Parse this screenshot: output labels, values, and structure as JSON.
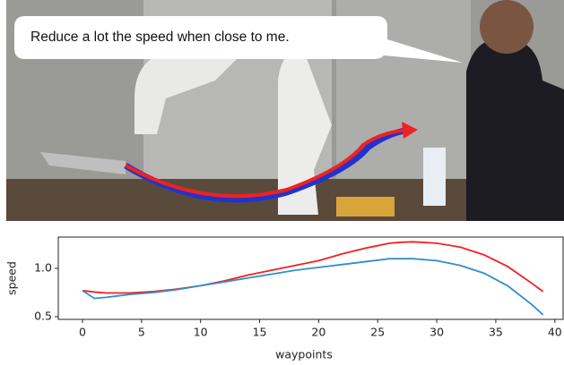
{
  "speech_bubble": "Reduce a lot the speed when close to me.",
  "chart_data": {
    "type": "line",
    "x": [
      0,
      1,
      2,
      4,
      6,
      8,
      10,
      12,
      14,
      16,
      18,
      20,
      22,
      24,
      26,
      27,
      28,
      30,
      32,
      34,
      36,
      38,
      39
    ],
    "series": [
      {
        "color": "#ee2222",
        "values": [
          0.77,
          0.755,
          0.745,
          0.745,
          0.76,
          0.785,
          0.82,
          0.87,
          0.93,
          0.98,
          1.03,
          1.08,
          1.15,
          1.21,
          1.26,
          1.27,
          1.275,
          1.26,
          1.22,
          1.14,
          1.02,
          0.85,
          0.76
        ]
      },
      {
        "color": "#2f8fce",
        "values": [
          0.77,
          0.69,
          0.7,
          0.73,
          0.75,
          0.78,
          0.82,
          0.86,
          0.9,
          0.94,
          0.98,
          1.01,
          1.04,
          1.07,
          1.1,
          1.1,
          1.1,
          1.08,
          1.03,
          0.95,
          0.82,
          0.63,
          0.52
        ]
      }
    ],
    "xlabel": "waypoints",
    "ylabel": "speed",
    "xlim": [
      -2.05,
      40.7
    ],
    "xticks": [
      0,
      5,
      10,
      15,
      20,
      25,
      30,
      35,
      40
    ],
    "ylim": [
      0.472,
      1.324
    ],
    "yticks": [
      0.5,
      {
        "value": 1,
        "label": "1.0"
      }
    ],
    "grid": false
  }
}
